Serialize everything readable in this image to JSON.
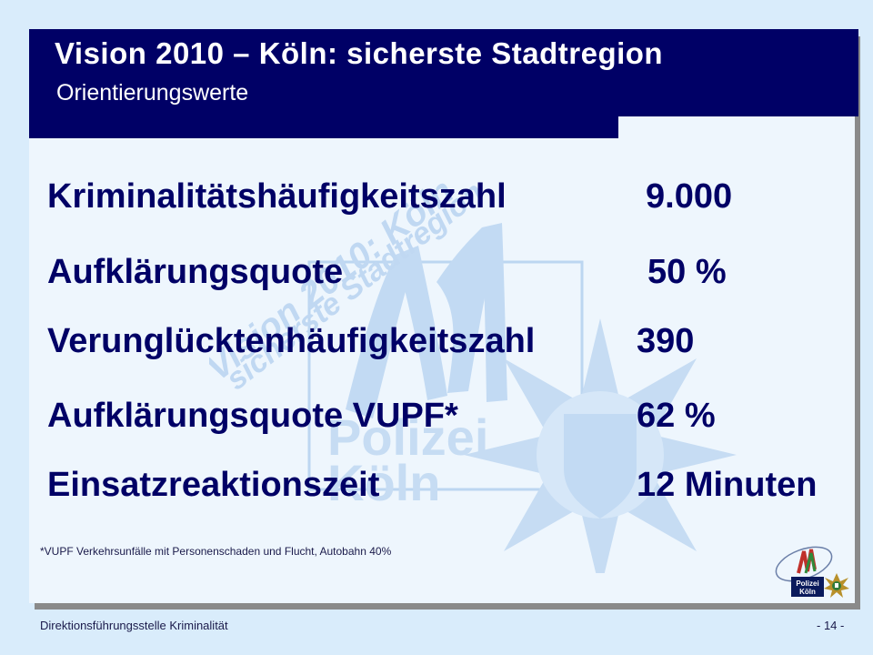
{
  "slide": {
    "title": "Vision 2010 – Köln: sicherste Stadtregion",
    "subtitle": "Orientierungswerte"
  },
  "metrics": [
    {
      "label": "Kriminalitätshäufigkeitszahl",
      "value": "9.000"
    },
    {
      "label": "Aufklärungsquote",
      "value": "50 %"
    },
    {
      "label": "Verunglücktenhäufigkeitszahl",
      "value": "390"
    },
    {
      "label": "Aufklärungsquote VUPF*",
      "value": "62 %"
    },
    {
      "label": "Einsatzreaktionszeit",
      "value": "12 Minuten"
    }
  ],
  "footnote": "*VUPF  Verkehrsunfälle mit Personenschaden und Flucht, Autobahn 40%",
  "watermark": {
    "line1": "Vision 2010: Köln",
    "line2": "sicherste Stadtregion",
    "police_line1": "Polizei",
    "police_line2": "Köln"
  },
  "logo": {
    "line1": "Polizei",
    "line2": "Köln"
  },
  "footer": {
    "left": "Direktionsführungsstelle Kriminalität",
    "right": "- 14 -"
  },
  "colors": {
    "navy": "#000066",
    "panel": "#eef6fd",
    "background": "#d9ecfb",
    "watermark": "#b8d4f0"
  }
}
